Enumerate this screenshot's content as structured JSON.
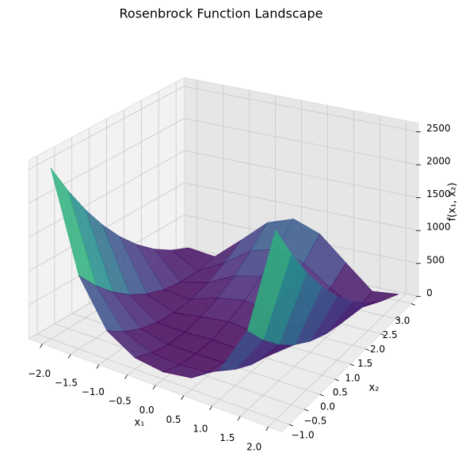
{
  "chart_data": {
    "type": "surface",
    "title": "Rosenbrock Function Landscape",
    "xlabel": "x₁",
    "ylabel": "x₂",
    "zlabel": "f(x₁, x₂)",
    "colormap": "viridis",
    "x": [
      -2,
      -1.5,
      -1,
      -0.5,
      0,
      0.5,
      1,
      1.5,
      2
    ],
    "y": [
      -1,
      -0.5,
      0,
      0.5,
      1,
      1.5,
      2,
      2.5,
      3
    ],
    "z": [
      [
        2509,
        1062.5,
        404,
        158.5,
        101,
        156.5,
        400,
        1056.5,
        2501
      ],
      [
        2034,
        762.5,
        229,
        58.5,
        26,
        56.5,
        225,
        756.5,
        2026
      ],
      [
        1609,
        512.5,
        104,
        8.5,
        1,
        6.5,
        100,
        506.5,
        1601
      ],
      [
        1234,
        312.5,
        29,
        8.5,
        26,
        6.5,
        25,
        306.5,
        1226
      ],
      [
        909,
        162.5,
        4,
        58.5,
        101,
        56.5,
        0,
        156.5,
        901
      ],
      [
        634,
        62.5,
        29,
        158.5,
        226,
        156.5,
        25,
        56.5,
        626
      ],
      [
        409,
        12.5,
        104,
        308.5,
        401,
        306.5,
        100,
        6.5,
        401
      ],
      [
        234,
        12.5,
        229,
        508.5,
        626,
        506.5,
        225,
        6.5,
        226
      ],
      [
        109,
        62.5,
        404,
        758.5,
        901,
        756.5,
        400,
        56.5,
        101
      ]
    ],
    "xlim": [
      -2,
      2
    ],
    "ylim": [
      -1,
      3
    ],
    "zlim": [
      0,
      2509
    ],
    "xticks": [
      {
        "value": -2,
        "label": "−2.0"
      },
      {
        "value": -1.5,
        "label": "−1.5"
      },
      {
        "value": -1,
        "label": "−1.0"
      },
      {
        "value": -0.5,
        "label": "−0.5"
      },
      {
        "value": 0,
        "label": "0.0"
      },
      {
        "value": 0.5,
        "label": "0.5"
      },
      {
        "value": 1,
        "label": "1.0"
      },
      {
        "value": 1.5,
        "label": "1.5"
      },
      {
        "value": 2,
        "label": "2.0"
      }
    ],
    "yticks": [
      {
        "value": -1,
        "label": "−1.0"
      },
      {
        "value": -0.5,
        "label": "−0.5"
      },
      {
        "value": 0,
        "label": "0.0"
      },
      {
        "value": 0.5,
        "label": "0.5"
      },
      {
        "value": 1,
        "label": "1.0"
      },
      {
        "value": 1.5,
        "label": "1.5"
      },
      {
        "value": 2,
        "label": "2.0"
      },
      {
        "value": 2.5,
        "label": "2.5"
      },
      {
        "value": 3,
        "label": "3.0"
      }
    ],
    "zticks": [
      0,
      500,
      1000,
      1500,
      2000,
      2500
    ]
  }
}
